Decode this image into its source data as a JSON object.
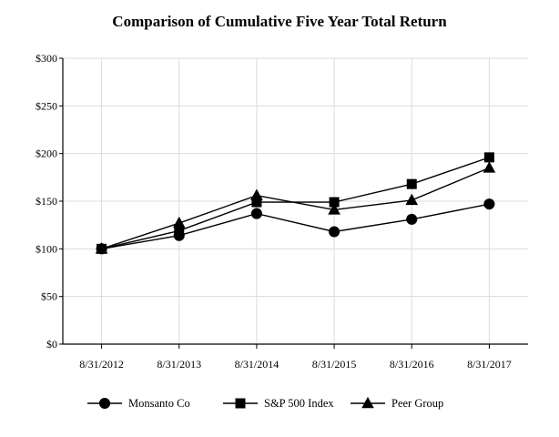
{
  "chart_data": {
    "type": "line",
    "title": "Comparison of Cumulative Five Year Total Return",
    "xlabel": "",
    "ylabel": "",
    "categories": [
      "8/31/2012",
      "8/31/2013",
      "8/31/2014",
      "8/31/2015",
      "8/31/2016",
      "8/31/2017"
    ],
    "yticks": [
      "$0",
      "$50",
      "$100",
      "$150",
      "$200",
      "$250",
      "$300"
    ],
    "ylim": [
      0,
      300
    ],
    "grid": true,
    "legend_position": "bottom",
    "series": [
      {
        "name": "Monsanto Co",
        "marker": "circle",
        "values": [
          100,
          114,
          137,
          118,
          131,
          147
        ]
      },
      {
        "name": "S&P 500 Index",
        "marker": "square",
        "values": [
          100,
          119,
          149,
          149,
          168,
          196
        ]
      },
      {
        "name": "Peer Group",
        "marker": "triangle",
        "values": [
          100,
          127,
          156,
          141,
          151,
          185
        ]
      }
    ]
  }
}
